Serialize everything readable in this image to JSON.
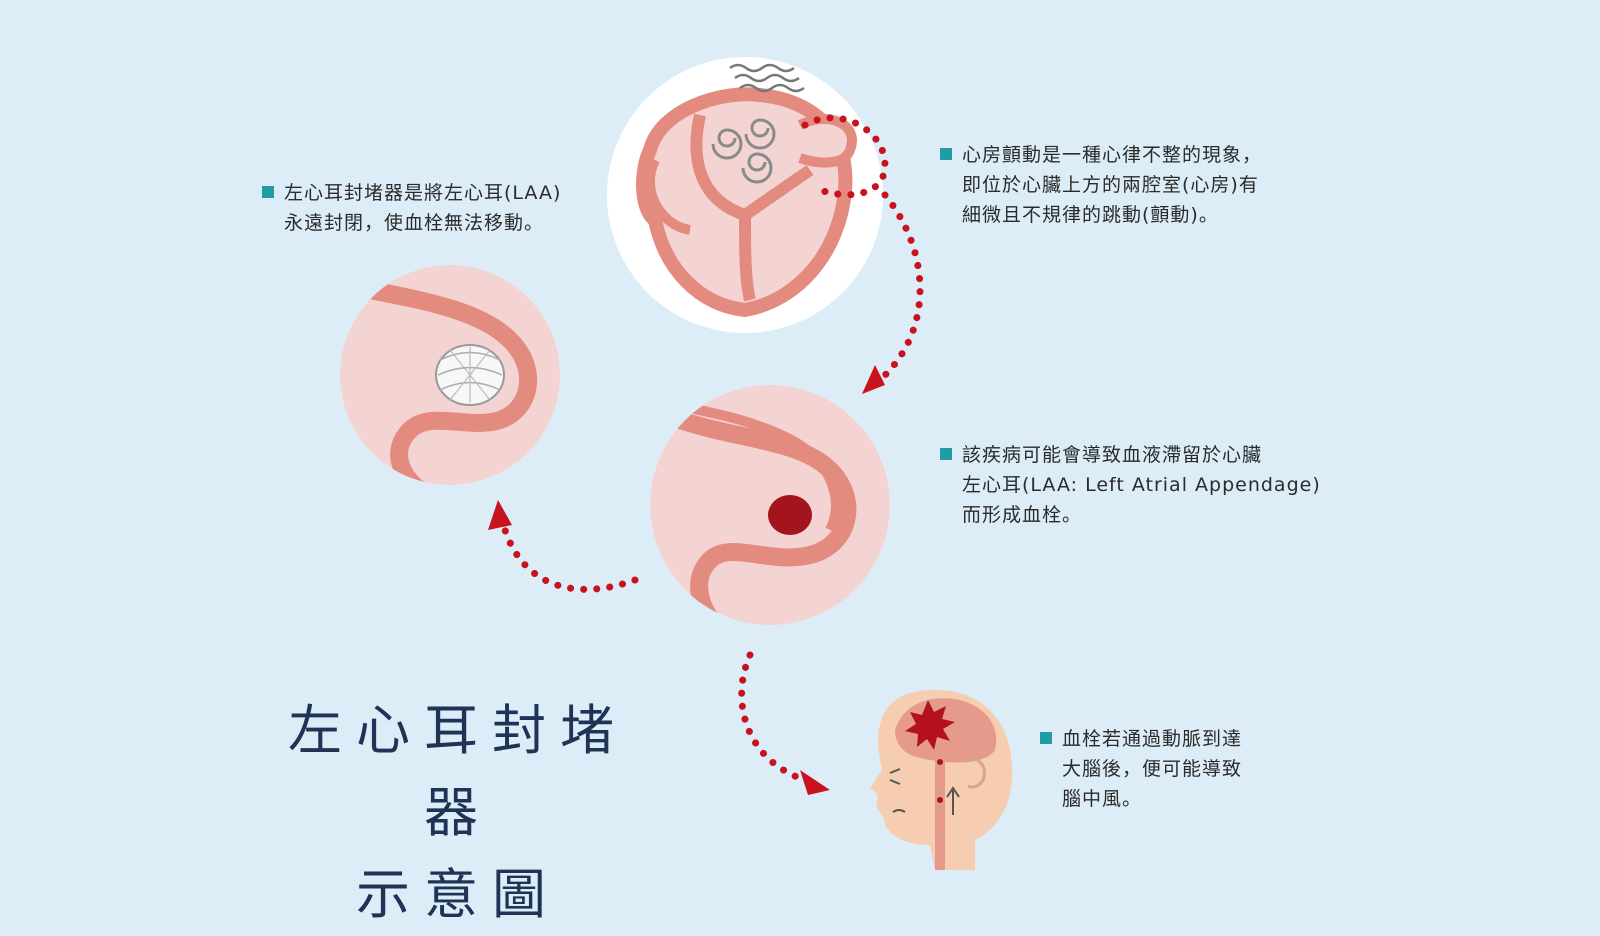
{
  "title": {
    "line1": "左心耳封堵器",
    "line2": "示意圖"
  },
  "notes": {
    "occluder": {
      "lines": [
        "左心耳封堵器是將左心耳(LAA)",
        "永遠封閉，使血栓無法移動。"
      ]
    },
    "af": {
      "lines": [
        "心房顫動是一種心律不整的現象，",
        "即位於心臟上方的兩腔室(心房)有",
        "細微且不規律的跳動(顫動)。"
      ]
    },
    "clot": {
      "lines": [
        "該疾病可能會導致血液滯留於心臟",
        "左心耳(LAA: Left Atrial Appendage)",
        "而形成血栓。"
      ]
    },
    "stroke": {
      "lines": [
        "血栓若通過動脈到達",
        "大腦後，便可能導致",
        "腦中風。"
      ]
    }
  },
  "colors": {
    "background": "#dcedf8",
    "bullet": "#1e9da3",
    "tissue": "#e48b80",
    "tissue_light": "#f4d3d3",
    "clot": "#a4141c",
    "arrow": "#c8121e",
    "title": "#1f3357"
  },
  "icons": [
    "heart-fibrillation-icon",
    "left-atrial-appendage-clot-icon",
    "occluder-device-icon",
    "brain-stroke-icon"
  ]
}
